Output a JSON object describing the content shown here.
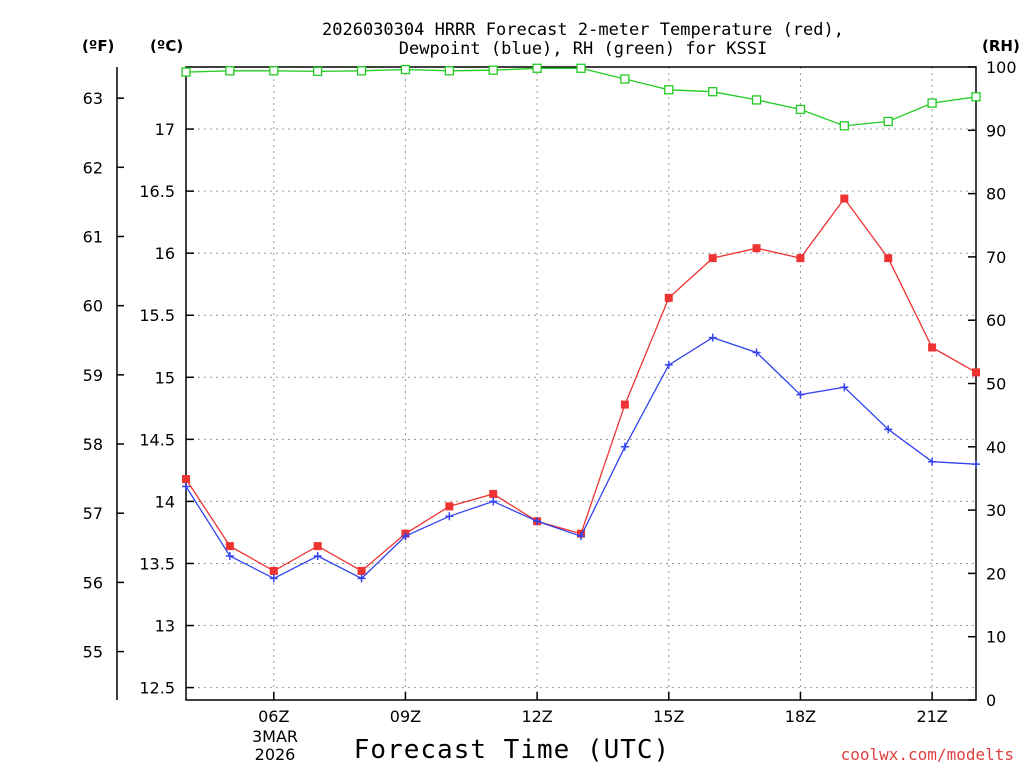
{
  "chart_data": {
    "type": "line",
    "title_lines": [
      "2026030304 HRRR Forecast 2-meter Temperature (red),",
      "Dewpoint (blue), RH (green) for KSSI"
    ],
    "xlabel": "Forecast Time (UTC)",
    "credit": "coolwx.com/modelts",
    "date_label": [
      "3MAR",
      "2026"
    ],
    "x_hours": [
      4,
      5,
      6,
      7,
      8,
      9,
      10,
      11,
      12,
      13,
      14,
      15,
      16,
      17,
      18,
      19,
      20,
      21,
      22
    ],
    "x_range": [
      4,
      22
    ],
    "x_ticks": [
      {
        "hour": 6,
        "label": "06Z"
      },
      {
        "hour": 9,
        "label": "09Z"
      },
      {
        "hour": 12,
        "label": "12Z"
      },
      {
        "hour": 15,
        "label": "15Z"
      },
      {
        "hour": 18,
        "label": "18Z"
      },
      {
        "hour": 21,
        "label": "21Z"
      }
    ],
    "left_axis_f": {
      "unit_label": "(ºF)",
      "range": [
        54.3,
        63.45
      ],
      "ticks": [
        "55",
        "56",
        "57",
        "58",
        "59",
        "60",
        "61",
        "62",
        "63"
      ]
    },
    "left_axis_c": {
      "unit_label": "(ºC)",
      "range": [
        12.4,
        17.5
      ],
      "ticks": [
        "12.5",
        "13",
        "13.5",
        "14",
        "14.5",
        "15",
        "15.5",
        "16",
        "16.5",
        "17"
      ]
    },
    "right_axis_rh": {
      "unit_label": "(RH)",
      "range": [
        0,
        100
      ],
      "ticks": [
        "0",
        "10",
        "20",
        "30",
        "40",
        "50",
        "60",
        "70",
        "80",
        "90",
        "100"
      ]
    },
    "series": [
      {
        "name": "Temperature",
        "axis": "c",
        "color": "#ee3333",
        "marker": "filled-square",
        "values": [
          14.18,
          13.64,
          13.44,
          13.64,
          13.44,
          13.74,
          13.96,
          14.06,
          13.84,
          13.74,
          14.78,
          15.64,
          15.96,
          16.04,
          15.96,
          16.44,
          15.96,
          15.24,
          15.04
        ]
      },
      {
        "name": "Dewpoint",
        "axis": "c",
        "color": "#3344ee",
        "marker": "plus",
        "values": [
          14.12,
          13.56,
          13.38,
          13.56,
          13.38,
          13.72,
          13.88,
          14.0,
          13.84,
          13.72,
          14.44,
          15.1,
          15.32,
          15.2,
          14.86,
          14.92,
          14.58,
          14.32,
          14.3
        ]
      },
      {
        "name": "Relative Humidity",
        "axis": "rh",
        "color": "#22cc22",
        "marker": "open-square",
        "values": [
          99.2,
          99.4,
          99.4,
          99.3,
          99.4,
          99.6,
          99.4,
          99.5,
          99.8,
          99.8,
          98.1,
          96.4,
          96.1,
          94.8,
          93.3,
          90.7,
          91.4,
          94.3,
          95.3
        ]
      }
    ],
    "grid": true
  }
}
